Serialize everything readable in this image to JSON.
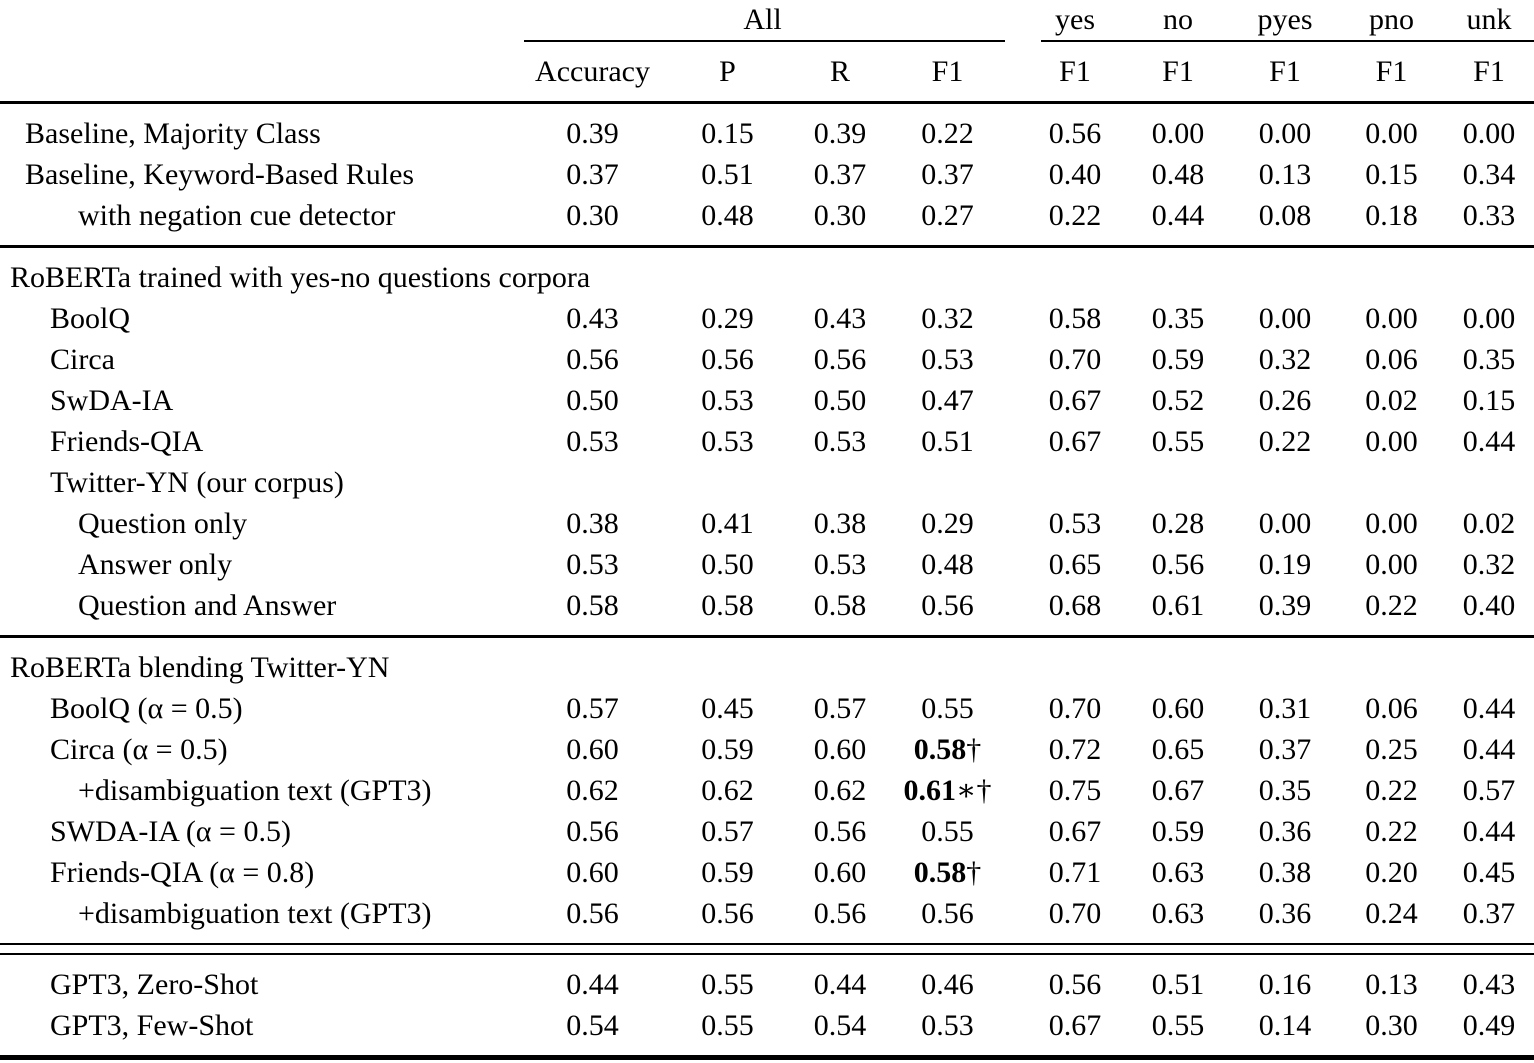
{
  "colors": {
    "text": "#000000",
    "background": "#ffffff",
    "rule": "#000000"
  },
  "table": {
    "header": {
      "all": "All",
      "classes": [
        "yes",
        "no",
        "pyes",
        "pno",
        "unk"
      ],
      "sub": [
        "Accuracy",
        "P",
        "R",
        "F1",
        "F1",
        "F1",
        "F1",
        "F1",
        "F1"
      ]
    },
    "sections": [
      {
        "rule_before": "none",
        "header": null,
        "rows": [
          {
            "label": "Baseline, Majority Class",
            "indent": 1,
            "values": [
              "0.39",
              "0.15",
              "0.39",
              "0.22",
              "0.56",
              "0.00",
              "0.00",
              "0.00",
              "0.00"
            ]
          },
          {
            "label": "Baseline, Keyword-Based Rules",
            "indent": 1,
            "values": [
              "0.37",
              "0.51",
              "0.37",
              "0.37",
              "0.40",
              "0.48",
              "0.13",
              "0.15",
              "0.34"
            ]
          },
          {
            "label": "with negation cue detector",
            "indent": 3,
            "values": [
              "0.30",
              "0.48",
              "0.30",
              "0.27",
              "0.22",
              "0.44",
              "0.08",
              "0.18",
              "0.33"
            ]
          }
        ]
      },
      {
        "rule_before": "single",
        "header": "RoBERTa trained with yes-no questions corpora",
        "rows": [
          {
            "label": "BoolQ",
            "indent": 2,
            "values": [
              "0.43",
              "0.29",
              "0.43",
              "0.32",
              "0.58",
              "0.35",
              "0.00",
              "0.00",
              "0.00"
            ]
          },
          {
            "label": "Circa",
            "indent": 2,
            "values": [
              "0.56",
              "0.56",
              "0.56",
              "0.53",
              "0.70",
              "0.59",
              "0.32",
              "0.06",
              "0.35"
            ]
          },
          {
            "label": "SwDA-IA",
            "indent": 2,
            "values": [
              "0.50",
              "0.53",
              "0.50",
              "0.47",
              "0.67",
              "0.52",
              "0.26",
              "0.02",
              "0.15"
            ]
          },
          {
            "label": "Friends-QIA",
            "indent": 2,
            "values": [
              "0.53",
              "0.53",
              "0.53",
              "0.51",
              "0.67",
              "0.55",
              "0.22",
              "0.00",
              "0.44"
            ]
          },
          {
            "label": "Twitter-YN (our corpus)",
            "indent": 2,
            "values": []
          },
          {
            "label": "Question only",
            "indent": 3,
            "values": [
              "0.38",
              "0.41",
              "0.38",
              "0.29",
              "0.53",
              "0.28",
              "0.00",
              "0.00",
              "0.02"
            ]
          },
          {
            "label": "Answer only",
            "indent": 3,
            "values": [
              "0.53",
              "0.50",
              "0.53",
              "0.48",
              "0.65",
              "0.56",
              "0.19",
              "0.00",
              "0.32"
            ]
          },
          {
            "label": "Question and Answer",
            "indent": 3,
            "values": [
              "0.58",
              "0.58",
              "0.58",
              "0.56",
              "0.68",
              "0.61",
              "0.39",
              "0.22",
              "0.40"
            ]
          }
        ]
      },
      {
        "rule_before": "single",
        "header": "RoBERTa blending Twitter-YN",
        "rows": [
          {
            "label": "BoolQ (α = 0.5)",
            "indent": 2,
            "values": [
              "0.57",
              "0.45",
              "0.57",
              "0.55",
              "0.70",
              "0.60",
              "0.31",
              "0.06",
              "0.44"
            ]
          },
          {
            "label": "Circa (α = 0.5)",
            "indent": 2,
            "values": [
              "0.60",
              "0.59",
              "0.60",
              {
                "b": "0.58",
                "suf": "†"
              },
              "0.72",
              "0.65",
              "0.37",
              "0.25",
              "0.44"
            ]
          },
          {
            "label": "+disambiguation text (GPT3)",
            "indent": 3,
            "values": [
              "0.62",
              "0.62",
              "0.62",
              {
                "b": "0.61",
                "suf": "∗†"
              },
              "0.75",
              "0.67",
              "0.35",
              "0.22",
              "0.57"
            ]
          },
          {
            "label": "SWDA-IA (α = 0.5)",
            "indent": 2,
            "values": [
              "0.56",
              "0.57",
              "0.56",
              "0.55",
              "0.67",
              "0.59",
              "0.36",
              "0.22",
              "0.44"
            ]
          },
          {
            "label": "Friends-QIA (α = 0.8)",
            "indent": 2,
            "values": [
              "0.60",
              "0.59",
              "0.60",
              {
                "b": "0.58",
                "suf": "†"
              },
              "0.71",
              "0.63",
              "0.38",
              "0.20",
              "0.45"
            ]
          },
          {
            "label": "+disambiguation text (GPT3)",
            "indent": 3,
            "values": [
              "0.56",
              "0.56",
              "0.56",
              "0.56",
              "0.70",
              "0.63",
              "0.36",
              "0.24",
              "0.37"
            ]
          }
        ]
      },
      {
        "rule_before": "double",
        "header": null,
        "rows": [
          {
            "label": "GPT3, Zero-Shot",
            "indent": 2,
            "values": [
              "0.44",
              "0.55",
              "0.44",
              "0.46",
              "0.56",
              "0.51",
              "0.16",
              "0.13",
              "0.43"
            ]
          },
          {
            "label": "GPT3, Few-Shot",
            "indent": 2,
            "values": [
              "0.54",
              "0.55",
              "0.54",
              "0.53",
              "0.67",
              "0.55",
              "0.14",
              "0.30",
              "0.49"
            ]
          }
        ]
      }
    ],
    "bottom_rule": "thick"
  }
}
